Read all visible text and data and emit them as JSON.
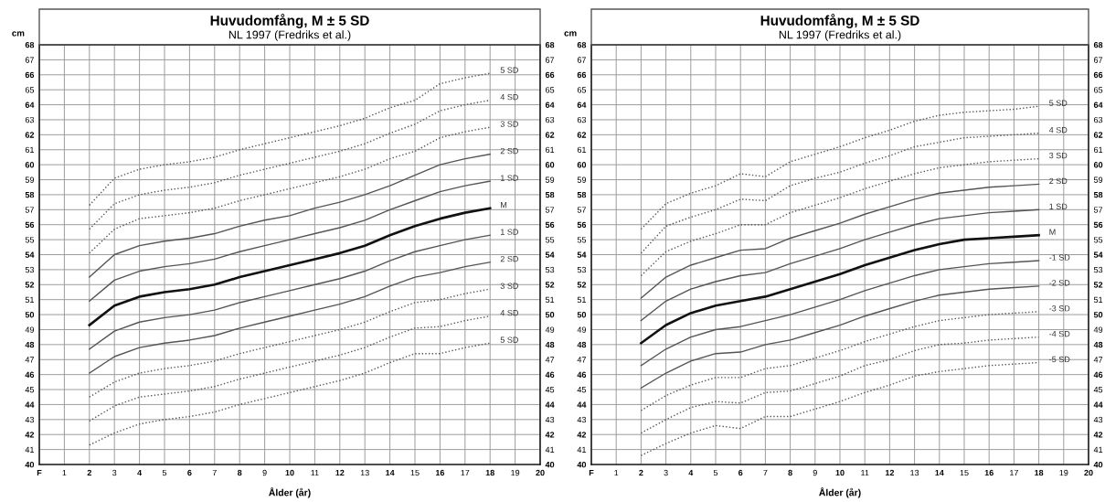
{
  "chart_data": [
    {
      "type": "line",
      "title": "Huvudomfång, M ± 5 SD",
      "subtitle": "NL 1997 (Fredriks et al.)",
      "xlabel": "Ålder (år)",
      "ylabel": "cm",
      "x": [
        2,
        3,
        4,
        5,
        6,
        7,
        8,
        9,
        10,
        11,
        12,
        13,
        14,
        15,
        16,
        17,
        18
      ],
      "series": [
        {
          "name": "5 SD",
          "color": "#555555",
          "line_style": "dotted",
          "values": [
            57.3,
            59.1,
            59.7,
            60.0,
            60.2,
            60.5,
            61.0,
            61.4,
            61.8,
            62.2,
            62.6,
            63.1,
            63.8,
            64.3,
            65.4,
            65.8,
            66.1
          ]
        },
        {
          "name": "4 SD",
          "color": "#555555",
          "line_style": "dotted",
          "values": [
            55.7,
            57.4,
            58.0,
            58.3,
            58.5,
            58.8,
            59.3,
            59.7,
            60.1,
            60.5,
            60.9,
            61.4,
            62.1,
            62.7,
            63.6,
            64.0,
            64.3
          ]
        },
        {
          "name": "3 SD",
          "color": "#555555",
          "line_style": "dotted",
          "values": [
            54.1,
            55.7,
            56.4,
            56.6,
            56.8,
            57.1,
            57.6,
            58.0,
            58.4,
            58.8,
            59.2,
            59.7,
            60.4,
            60.9,
            61.8,
            62.2,
            62.5
          ]
        },
        {
          "name": "2 SD",
          "color": "#555555",
          "line_style": "solid",
          "values": [
            52.5,
            54.0,
            54.6,
            54.9,
            55.1,
            55.4,
            55.9,
            56.3,
            56.6,
            57.1,
            57.5,
            58.0,
            58.6,
            59.3,
            60.0,
            60.4,
            60.7
          ]
        },
        {
          "name": "1 SD",
          "color": "#555555",
          "line_style": "solid",
          "values": [
            50.9,
            52.3,
            52.9,
            53.2,
            53.4,
            53.7,
            54.2,
            54.6,
            55.0,
            55.4,
            55.8,
            56.3,
            57.0,
            57.6,
            58.2,
            58.6,
            58.9
          ]
        },
        {
          "name": "M",
          "color": "#111111",
          "line_style": "solid",
          "values": [
            49.3,
            50.6,
            51.2,
            51.5,
            51.7,
            52.0,
            52.5,
            52.9,
            53.3,
            53.7,
            54.1,
            54.6,
            55.3,
            55.9,
            56.4,
            56.8,
            57.1
          ]
        },
        {
          "name": "1 SD",
          "color": "#555555",
          "line_style": "solid",
          "values": [
            47.7,
            48.9,
            49.5,
            49.8,
            50.0,
            50.3,
            50.8,
            51.2,
            51.6,
            52.0,
            52.4,
            52.9,
            53.6,
            54.2,
            54.6,
            55.0,
            55.3
          ]
        },
        {
          "name": "2 SD",
          "color": "#555555",
          "line_style": "solid",
          "values": [
            46.1,
            47.2,
            47.8,
            48.1,
            48.3,
            48.6,
            49.1,
            49.5,
            49.9,
            50.3,
            50.7,
            51.2,
            51.9,
            52.5,
            52.8,
            53.2,
            53.5
          ]
        },
        {
          "name": "3 SD",
          "color": "#555555",
          "line_style": "dotted",
          "values": [
            44.5,
            45.5,
            46.1,
            46.4,
            46.6,
            46.9,
            47.4,
            47.8,
            48.2,
            48.6,
            49.0,
            49.5,
            50.2,
            50.8,
            51.0,
            51.4,
            51.7
          ]
        },
        {
          "name": "4 SD",
          "color": "#555555",
          "line_style": "dotted",
          "values": [
            42.9,
            43.9,
            44.5,
            44.7,
            44.9,
            45.2,
            45.7,
            46.1,
            46.5,
            46.9,
            47.3,
            47.8,
            48.5,
            49.1,
            49.2,
            49.6,
            49.9
          ]
        },
        {
          "name": "5 SD",
          "color": "#555555",
          "line_style": "dotted",
          "values": [
            41.3,
            42.1,
            42.7,
            43.0,
            43.2,
            43.5,
            44.0,
            44.4,
            44.8,
            45.2,
            45.6,
            46.1,
            46.8,
            47.4,
            47.4,
            47.8,
            48.1
          ]
        }
      ],
      "xlim": [
        0,
        20
      ],
      "xticks": [
        {
          "value": 0,
          "label": "F"
        },
        1,
        2,
        3,
        4,
        5,
        6,
        7,
        8,
        9,
        10,
        11,
        12,
        13,
        14,
        15,
        16,
        17,
        18,
        19,
        20
      ],
      "ylim": [
        40,
        68
      ],
      "yticks": [
        40,
        41,
        42,
        43,
        44,
        45,
        46,
        47,
        48,
        49,
        50,
        51,
        52,
        53,
        54,
        55,
        56,
        57,
        58,
        59,
        60,
        61,
        62,
        63,
        64,
        65,
        66,
        67,
        68
      ],
      "y2lim": [
        40,
        68
      ],
      "y2ticks": [
        40,
        41,
        42,
        43,
        44,
        45,
        46,
        47,
        48,
        49,
        50,
        51,
        52,
        53,
        54,
        55,
        56,
        57,
        58,
        59,
        60,
        61,
        62,
        63,
        64,
        65,
        66,
        67,
        68
      ],
      "grid": true
    },
    {
      "type": "line",
      "title": "Huvudomfång, M ± 5 SD",
      "subtitle": "NL 1997 (Fredriks et al.)",
      "xlabel": "Ålder (år)",
      "ylabel": "cm",
      "x": [
        2,
        3,
        4,
        5,
        6,
        7,
        8,
        9,
        10,
        11,
        12,
        13,
        14,
        15,
        16,
        17,
        18
      ],
      "series": [
        {
          "name": "5 SD",
          "color": "#555555",
          "line_style": "dotted",
          "values": [
            55.7,
            57.4,
            58.1,
            58.6,
            59.4,
            59.2,
            60.2,
            60.7,
            61.2,
            61.8,
            62.3,
            62.9,
            63.3,
            63.5,
            63.6,
            63.7,
            63.9
          ]
        },
        {
          "name": "4 SD",
          "color": "#555555",
          "line_style": "dotted",
          "values": [
            54.1,
            55.9,
            56.5,
            57.0,
            57.7,
            57.6,
            58.6,
            59.1,
            59.5,
            60.1,
            60.6,
            61.2,
            61.5,
            61.8,
            61.9,
            62.0,
            62.1
          ]
        },
        {
          "name": "3 SD",
          "color": "#555555",
          "line_style": "dotted",
          "values": [
            52.6,
            54.2,
            54.9,
            55.4,
            56.0,
            56.0,
            56.8,
            57.3,
            57.8,
            58.4,
            58.9,
            59.4,
            59.8,
            60.0,
            60.2,
            60.3,
            60.4
          ]
        },
        {
          "name": "2 SD",
          "color": "#555555",
          "line_style": "solid",
          "values": [
            51.1,
            52.5,
            53.3,
            53.8,
            54.3,
            54.4,
            55.1,
            55.6,
            56.1,
            56.7,
            57.2,
            57.7,
            58.1,
            58.3,
            58.5,
            58.6,
            58.7
          ]
        },
        {
          "name": "1 SD",
          "color": "#555555",
          "line_style": "solid",
          "values": [
            49.6,
            50.9,
            51.7,
            52.2,
            52.6,
            52.8,
            53.4,
            53.9,
            54.4,
            55.0,
            55.5,
            56.0,
            56.4,
            56.6,
            56.8,
            56.9,
            57.0
          ]
        },
        {
          "name": "M",
          "color": "#111111",
          "line_style": "solid",
          "values": [
            48.1,
            49.3,
            50.1,
            50.6,
            50.9,
            51.2,
            51.7,
            52.2,
            52.7,
            53.3,
            53.8,
            54.3,
            54.7,
            55.0,
            55.1,
            55.2,
            55.3
          ]
        },
        {
          "name": "-1 SD",
          "color": "#555555",
          "line_style": "solid",
          "values": [
            46.6,
            47.7,
            48.5,
            49.0,
            49.2,
            49.6,
            50.0,
            50.5,
            51.0,
            51.6,
            52.1,
            52.6,
            53.0,
            53.2,
            53.4,
            53.5,
            53.6
          ]
        },
        {
          "name": "-2 SD",
          "color": "#555555",
          "line_style": "solid",
          "values": [
            45.1,
            46.1,
            46.9,
            47.4,
            47.5,
            48.0,
            48.3,
            48.8,
            49.3,
            49.9,
            50.4,
            50.9,
            51.3,
            51.5,
            51.7,
            51.8,
            51.9
          ]
        },
        {
          "name": "-3 SD",
          "color": "#555555",
          "line_style": "dotted",
          "values": [
            43.6,
            44.6,
            45.3,
            45.8,
            45.8,
            46.4,
            46.6,
            47.1,
            47.6,
            48.2,
            48.7,
            49.2,
            49.6,
            49.8,
            50.0,
            50.1,
            50.2
          ]
        },
        {
          "name": "-4 SD",
          "color": "#555555",
          "line_style": "dotted",
          "values": [
            42.1,
            43.0,
            43.8,
            44.2,
            44.1,
            44.8,
            44.9,
            45.4,
            45.9,
            46.6,
            47.0,
            47.6,
            48.0,
            48.1,
            48.3,
            48.4,
            48.5
          ]
        },
        {
          "name": "-5 SD",
          "color": "#555555",
          "line_style": "dotted",
          "values": [
            40.6,
            41.4,
            42.1,
            42.6,
            42.4,
            43.2,
            43.2,
            43.7,
            44.2,
            44.8,
            45.3,
            45.9,
            46.2,
            46.4,
            46.6,
            46.7,
            46.8
          ]
        }
      ],
      "xlim": [
        0,
        20
      ],
      "xticks": [
        {
          "value": 0,
          "label": "F"
        },
        1,
        2,
        3,
        4,
        5,
        6,
        7,
        8,
        9,
        10,
        11,
        12,
        13,
        14,
        15,
        16,
        17,
        18,
        19,
        20
      ],
      "ylim": [
        40,
        68
      ],
      "yticks": [
        40,
        41,
        42,
        43,
        44,
        45,
        46,
        47,
        48,
        49,
        50,
        51,
        52,
        53,
        54,
        55,
        56,
        57,
        58,
        59,
        60,
        61,
        62,
        63,
        64,
        65,
        66,
        67,
        68
      ],
      "y2lim": [
        40,
        68
      ],
      "y2ticks": [
        40,
        41,
        42,
        43,
        44,
        45,
        46,
        47,
        48,
        49,
        50,
        51,
        52,
        53,
        54,
        55,
        56,
        57,
        58,
        59,
        60,
        61,
        62,
        63,
        64,
        65,
        66,
        67,
        68
      ],
      "grid": true
    }
  ]
}
